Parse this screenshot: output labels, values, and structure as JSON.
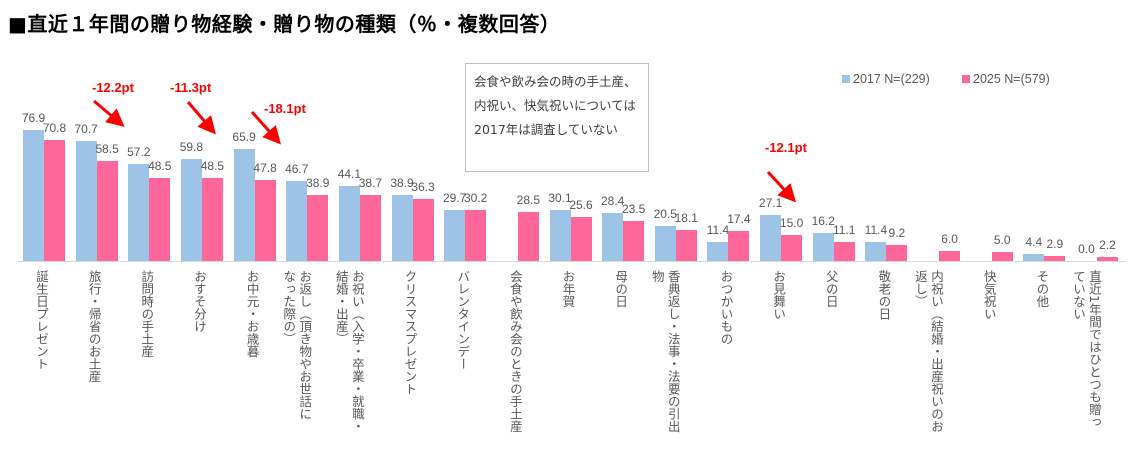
{
  "chart_data": {
    "type": "bar",
    "title": "■直近１年間の贈り物経験・贈り物の種類（％・複数回答）",
    "categories": [
      "誕生日プレゼント",
      "旅行・帰省のお土産",
      "訪問時の手土産",
      "おすそ分け",
      "お中元・お歳暮",
      "お返し（頂き物やお世話に\nなった際の）",
      "お祝い（入学・卒業・就職・\n結婚・出産）",
      "クリスマスプレゼント",
      "バレンタインデー",
      "会食や飲み会のときの手土産",
      "お年賀",
      "母の日",
      "香典返し・法事・法要の引出\n物",
      "おつかいもの",
      "お見舞い",
      "父の日",
      "敬老の日",
      "内祝い（結婚・出産祝いのお\n返し）",
      "快気祝い",
      "その他",
      "直近1年間ではひとつも贈っ\nていない"
    ],
    "series": [
      {
        "name": "2017 N=(229)",
        "color": "#9DC3E6",
        "values": [
          76.9,
          70.7,
          57.2,
          59.8,
          65.9,
          46.7,
          44.1,
          38.9,
          29.7,
          null,
          30.1,
          28.4,
          20.5,
          11.4,
          27.1,
          16.2,
          11.4,
          null,
          null,
          4.4,
          0.0
        ]
      },
      {
        "name": "2025 N=(579)",
        "color": "#FF6699",
        "values": [
          70.8,
          58.5,
          48.5,
          48.5,
          47.8,
          38.9,
          38.7,
          36.3,
          30.2,
          28.5,
          25.6,
          23.5,
          18.1,
          17.4,
          15.0,
          11.1,
          9.2,
          6.0,
          5.0,
          2.9,
          2.2
        ]
      }
    ],
    "value_labels": {
      "2017": [
        "76.9",
        "70.7",
        "57.2",
        "59.8",
        "65.9",
        "46.7",
        "44.1",
        "38.9",
        "29.7",
        "",
        "30.1",
        "28.4",
        "20.5",
        "11.4",
        "27.1",
        "16.2",
        "11.4",
        "",
        "",
        "4.4",
        "0.0"
      ],
      "2025": [
        "70.8",
        "58.5",
        "48.5",
        "48.5",
        "47.8",
        "38.9",
        "38.7",
        "36.3",
        "30.2",
        "28.5",
        "25.6",
        "23.5",
        "18.1",
        "17.4",
        "15.0",
        "11.1",
        "9.2",
        "6.0",
        "5.0",
        "2.9",
        "2.2"
      ]
    },
    "annotations": [
      {
        "text": "-12.2pt",
        "category_index": 1
      },
      {
        "text": "-11.3pt",
        "category_index": 3
      },
      {
        "text": "-18.1pt",
        "category_index": 4
      },
      {
        "text": "-12.1pt",
        "category_index": 14
      }
    ],
    "note": "会食や飲み会の時の手土産、内祝い、快気祝いについては2017年は調査していない",
    "legend": "top-right",
    "ylim": [
      0,
      80
    ],
    "grid": false
  }
}
